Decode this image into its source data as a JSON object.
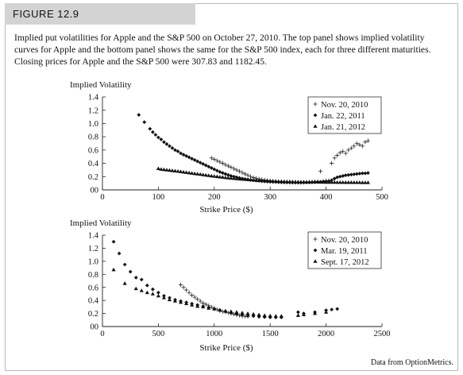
{
  "figure": {
    "label": "FIGURE 12.9",
    "caption": "Implied put volatilities for Apple and the S&P 500 on October 27, 2010. The top panel shows implied volatility curves for Apple and the bottom panel shows the same for the S&P 500 index, each for three different maturities. Closing prices for Apple and the S&P 500 were 307.83 and 1182.45.",
    "credit": "Data from OptionMetrics."
  },
  "chart_data": [
    {
      "type": "scatter",
      "title": "",
      "ylabel": "Implied Volatility",
      "xlabel": "Strike Price ($)",
      "xlim": [
        0,
        500
      ],
      "ylim": [
        0,
        1.4
      ],
      "xticks": [
        0,
        100,
        200,
        300,
        400,
        500
      ],
      "xtick_labels": [
        "0",
        "100",
        "200",
        "300",
        "400",
        "500"
      ],
      "yticks": [
        0,
        0.2,
        0.4,
        0.6,
        0.8,
        1.0,
        1.2,
        1.4
      ],
      "ytick_labels": [
        "00",
        "0.2",
        "0.4",
        "0.6",
        "0.8",
        "1.0",
        "1.2",
        "1.4"
      ],
      "grid": false,
      "legend": "top-right",
      "series": [
        {
          "name": "Nov. 20, 2010",
          "marker": "plus",
          "x": [
            195,
            200,
            205,
            210,
            215,
            220,
            225,
            230,
            235,
            240,
            245,
            250,
            255,
            260,
            265,
            270,
            275,
            280,
            285,
            290,
            295,
            300,
            305,
            310,
            315,
            320,
            325,
            330,
            335,
            340,
            345,
            350,
            355,
            360,
            365,
            370,
            375,
            380,
            385,
            390,
            395,
            400,
            405,
            410,
            415,
            420,
            425,
            430,
            435,
            440,
            445,
            450,
            455,
            460,
            465,
            470,
            475
          ],
          "y": [
            0.48,
            0.46,
            0.44,
            0.42,
            0.4,
            0.38,
            0.36,
            0.34,
            0.32,
            0.3,
            0.28,
            0.26,
            0.24,
            0.22,
            0.2,
            0.185,
            0.175,
            0.165,
            0.155,
            0.148,
            0.142,
            0.137,
            0.132,
            0.128,
            0.125,
            0.122,
            0.12,
            0.118,
            0.116,
            0.114,
            0.113,
            0.112,
            0.112,
            0.113,
            0.115,
            0.118,
            0.12,
            0.124,
            0.128,
            0.28,
            0.132,
            0.138,
            0.14,
            0.4,
            0.48,
            0.52,
            0.56,
            0.58,
            0.55,
            0.6,
            0.63,
            0.66,
            0.7,
            0.68,
            0.66,
            0.72,
            0.74
          ]
        },
        {
          "name": "Jan. 22, 2011",
          "marker": "diamond",
          "x": [
            65,
            75,
            85,
            90,
            95,
            100,
            105,
            110,
            115,
            120,
            125,
            130,
            135,
            140,
            145,
            150,
            155,
            160,
            165,
            170,
            175,
            180,
            185,
            190,
            195,
            200,
            205,
            210,
            215,
            220,
            225,
            230,
            235,
            240,
            245,
            250,
            255,
            260,
            265,
            270,
            275,
            280,
            285,
            290,
            295,
            300,
            305,
            310,
            315,
            320,
            325,
            330,
            335,
            340,
            345,
            350,
            355,
            360,
            365,
            370,
            375,
            380,
            385,
            390,
            395,
            400,
            405,
            410,
            415,
            420,
            425,
            430,
            435,
            440,
            445,
            450,
            455,
            460,
            465,
            470,
            475
          ],
          "y": [
            1.13,
            1.02,
            0.92,
            0.87,
            0.83,
            0.79,
            0.76,
            0.72,
            0.69,
            0.66,
            0.63,
            0.6,
            0.58,
            0.55,
            0.53,
            0.51,
            0.49,
            0.47,
            0.45,
            0.43,
            0.41,
            0.39,
            0.37,
            0.35,
            0.33,
            0.31,
            0.29,
            0.27,
            0.255,
            0.24,
            0.225,
            0.21,
            0.2,
            0.19,
            0.18,
            0.17,
            0.163,
            0.156,
            0.15,
            0.145,
            0.14,
            0.136,
            0.132,
            0.128,
            0.125,
            0.122,
            0.12,
            0.118,
            0.116,
            0.114,
            0.113,
            0.112,
            0.111,
            0.11,
            0.11,
            0.11,
            0.11,
            0.111,
            0.112,
            0.113,
            0.115,
            0.117,
            0.119,
            0.121,
            0.124,
            0.127,
            0.13,
            0.145,
            0.17,
            0.19,
            0.2,
            0.21,
            0.22,
            0.225,
            0.23,
            0.235,
            0.24,
            0.245,
            0.25,
            0.25,
            0.255
          ]
        },
        {
          "name": "Jan. 21, 2012",
          "marker": "triangle",
          "x": [
            100,
            105,
            110,
            115,
            120,
            125,
            130,
            135,
            140,
            145,
            150,
            155,
            160,
            165,
            170,
            175,
            180,
            185,
            190,
            195,
            200,
            205,
            210,
            215,
            220,
            225,
            230,
            235,
            240,
            245,
            250,
            255,
            260,
            265,
            270,
            275,
            280,
            285,
            290,
            295,
            300,
            305,
            310,
            315,
            320,
            325,
            330,
            335,
            340,
            345,
            350,
            355,
            360,
            365,
            370,
            375,
            380,
            385,
            390,
            395,
            400,
            405,
            410,
            415,
            420,
            425,
            430,
            435,
            440,
            445,
            450,
            455,
            460,
            465,
            470,
            475
          ],
          "y": [
            0.32,
            0.31,
            0.305,
            0.3,
            0.295,
            0.29,
            0.285,
            0.28,
            0.274,
            0.268,
            0.262,
            0.256,
            0.25,
            0.245,
            0.24,
            0.234,
            0.228,
            0.222,
            0.216,
            0.21,
            0.205,
            0.2,
            0.195,
            0.19,
            0.185,
            0.18,
            0.176,
            0.172,
            0.168,
            0.164,
            0.16,
            0.157,
            0.154,
            0.151,
            0.148,
            0.145,
            0.142,
            0.14,
            0.138,
            0.136,
            0.134,
            0.132,
            0.13,
            0.128,
            0.127,
            0.126,
            0.125,
            0.124,
            0.123,
            0.122,
            0.121,
            0.12,
            0.12,
            0.119,
            0.118,
            0.118,
            0.117,
            0.117,
            0.116,
            0.116,
            0.115,
            0.115,
            0.114,
            0.114,
            0.113,
            0.113,
            0.113,
            0.112,
            0.112,
            0.112,
            0.111,
            0.111,
            0.111,
            0.11,
            0.11,
            0.11
          ]
        }
      ]
    },
    {
      "type": "scatter",
      "title": "",
      "ylabel": "Implied Volatility",
      "xlabel": "Strike Price ($)",
      "xlim": [
        0,
        2500
      ],
      "ylim": [
        0,
        1.4
      ],
      "xticks": [
        0,
        500,
        1000,
        1500,
        2000,
        2500
      ],
      "xtick_labels": [
        "0",
        "500",
        "1000",
        "1500",
        "2000",
        "2500"
      ],
      "yticks": [
        0,
        0.2,
        0.4,
        0.6,
        0.8,
        1.0,
        1.2,
        1.4
      ],
      "ytick_labels": [
        "00",
        "0.2",
        "0.4",
        "0.6",
        "0.8",
        "1.0",
        "1.2",
        "1.4"
      ],
      "grid": false,
      "legend": "top-right",
      "series": [
        {
          "name": "Nov. 20, 2010",
          "marker": "plus",
          "x": [
            700,
            725,
            750,
            775,
            800,
            825,
            850,
            875,
            900,
            925,
            950,
            975,
            1000,
            1025,
            1050,
            1075,
            1100,
            1125,
            1150,
            1175,
            1200,
            1225,
            1250,
            1275,
            1300
          ],
          "y": [
            0.64,
            0.6,
            0.56,
            0.52,
            0.48,
            0.45,
            0.42,
            0.39,
            0.36,
            0.34,
            0.32,
            0.3,
            0.28,
            0.26,
            0.24,
            0.23,
            0.22,
            0.21,
            0.2,
            0.19,
            0.18,
            0.17,
            0.16,
            0.155,
            0.15
          ]
        },
        {
          "name": "Mar. 19, 2011",
          "marker": "diamond",
          "x": [
            100,
            150,
            200,
            250,
            300,
            350,
            400,
            450,
            500,
            550,
            600,
            650,
            700,
            750,
            800,
            850,
            900,
            950,
            1000,
            1050,
            1100,
            1150,
            1200,
            1250,
            1300,
            1350,
            1400,
            1450,
            1500,
            1550,
            1600,
            1750,
            1800,
            1900,
            2000,
            2050,
            2100
          ],
          "y": [
            1.3,
            1.12,
            0.95,
            0.84,
            0.75,
            0.72,
            0.63,
            0.57,
            0.52,
            0.47,
            0.44,
            0.41,
            0.39,
            0.37,
            0.35,
            0.33,
            0.31,
            0.29,
            0.27,
            0.25,
            0.23,
            0.21,
            0.19,
            0.18,
            0.17,
            0.16,
            0.15,
            0.145,
            0.14,
            0.14,
            0.14,
            0.22,
            0.2,
            0.22,
            0.25,
            0.26,
            0.27
          ]
        },
        {
          "name": "Sept. 17, 2012",
          "marker": "triangle",
          "x": [
            100,
            200,
            300,
            350,
            400,
            450,
            500,
            550,
            600,
            650,
            700,
            750,
            800,
            850,
            900,
            950,
            1000,
            1050,
            1100,
            1150,
            1200,
            1250,
            1300,
            1350,
            1400,
            1450,
            1500,
            1550,
            1600,
            1750,
            1800,
            1900,
            2000
          ],
          "y": [
            0.87,
            0.66,
            0.58,
            0.55,
            0.52,
            0.5,
            0.47,
            0.44,
            0.41,
            0.39,
            0.37,
            0.35,
            0.33,
            0.31,
            0.3,
            0.28,
            0.27,
            0.255,
            0.24,
            0.23,
            0.22,
            0.21,
            0.2,
            0.19,
            0.18,
            0.17,
            0.165,
            0.16,
            0.16,
            0.17,
            0.18,
            0.2,
            0.22
          ]
        }
      ]
    }
  ]
}
